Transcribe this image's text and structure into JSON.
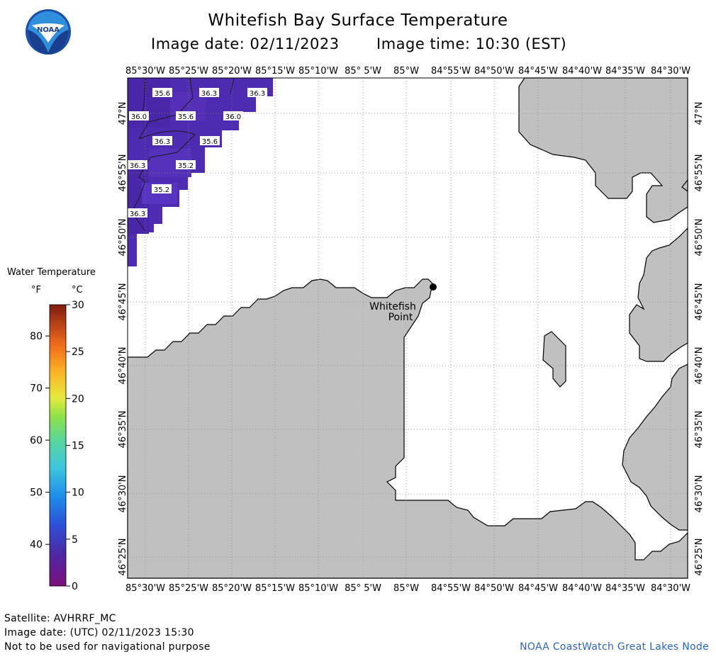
{
  "header": {
    "title": "Whitefish Bay Surface Temperature",
    "image_date_label": "Image date: 02/11/2023",
    "image_time_label": "Image time: 10:30 (EST)"
  },
  "logo": {
    "text": "NOAA"
  },
  "map": {
    "lon_labels": [
      "85°30'W",
      "85°25'W",
      "85°20'W",
      "85°15'W",
      "85°10'W",
      "85° 5'W",
      "85°W",
      "84°55'W",
      "84°50'W",
      "84°45'W",
      "84°40'W",
      "84°35'W",
      "84°30'W"
    ],
    "lat_labels": [
      "47°N",
      "46°55'N",
      "46°50'N",
      "46°45'N",
      "46°40'N",
      "46°35'N",
      "46°30'N",
      "46°25'N"
    ],
    "place_label_line1": "Whitefish",
    "place_label_line2": "Point",
    "isotherm_labels": [
      "35.6",
      "36.3",
      "36.3",
      "36.0",
      "35.6",
      "36.0",
      "36.3",
      "35.6",
      "36.3",
      "35.2",
      "35.2",
      "36.3"
    ],
    "colors": {
      "land": "#c0c0c0",
      "water": "#ffffff",
      "sst_dark": "#4b2aa8",
      "sst_light": "#5a32c0",
      "grid": "#888888"
    }
  },
  "legend": {
    "title": "Water Temperature",
    "unit_f": "°F",
    "unit_c": "°C",
    "f_ticks": [
      "80",
      "70",
      "60",
      "50",
      "40"
    ],
    "c_ticks": [
      "30",
      "25",
      "20",
      "15",
      "10",
      "5",
      "0"
    ]
  },
  "footer": {
    "satellite": "Satellite: AVHRRF_MC",
    "utc_date": "Image date: (UTC) 02/11/2023  15:30",
    "disclaimer": "Not to be used for navigational purpose",
    "credit": "NOAA CoastWatch Great Lakes Node"
  }
}
